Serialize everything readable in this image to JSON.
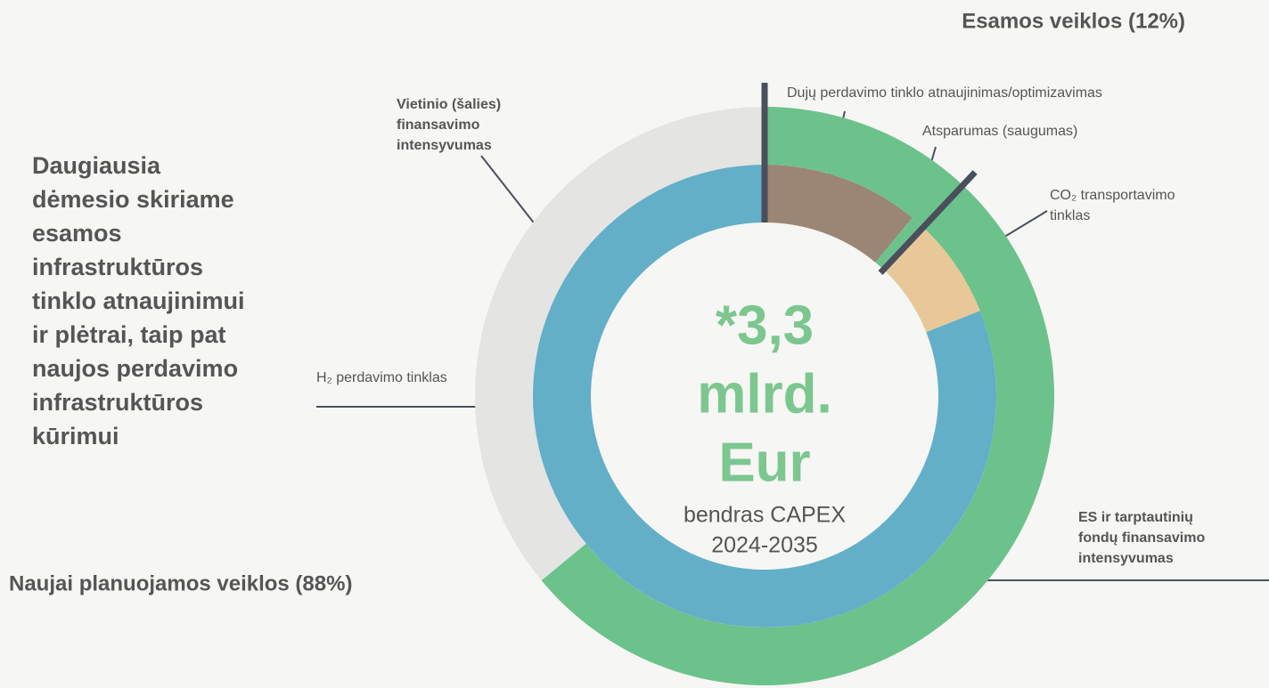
{
  "chart_data": {
    "type": "donut",
    "rings": [
      {
        "categories": [
          [
            "ES ir tarptautinių",
            "fondų finansavimo",
            "intensyvumas"
          ],
          [
            "Vietinio (šalies)",
            "finansavimo",
            "intensyvumas"
          ]
        ],
        "values": [
          64,
          36
        ],
        "colors": [
          "#6cc28b",
          "#e4e4e2"
        ]
      },
      {
        "categories": [
          [
            "Dujų perdavimo tinklo atnaujinimas/optimizavimas"
          ],
          [
            "Atsparumas (saugumas)"
          ],
          [
            "CO₂ transportavimo",
            "tinklas"
          ],
          [
            "H₂ perdavimo tinklas"
          ]
        ],
        "values": [
          11,
          1,
          7,
          81
        ],
        "colors": [
          "#9b8575",
          "#6cc28b",
          "#e8c898",
          "#63afc8"
        ]
      }
    ],
    "center_text": [
      "*3,3",
      "mlrd.",
      "Eur"
    ],
    "center_subtext": [
      "bendras CAPEX",
      "2024-2035"
    ],
    "group_labels": [
      "Esamos veiklos (12%)",
      "Naujai planuojamos veiklos (88%)"
    ],
    "side_text": [
      "Daugiausia",
      "dėmesio skiriame",
      "esamos",
      "infrastruktūros",
      "tinklo atnaujinimui",
      "ir plėtrai, taip pat",
      "naujos perdavimo",
      "infrastruktūros",
      "kūrimui"
    ]
  }
}
